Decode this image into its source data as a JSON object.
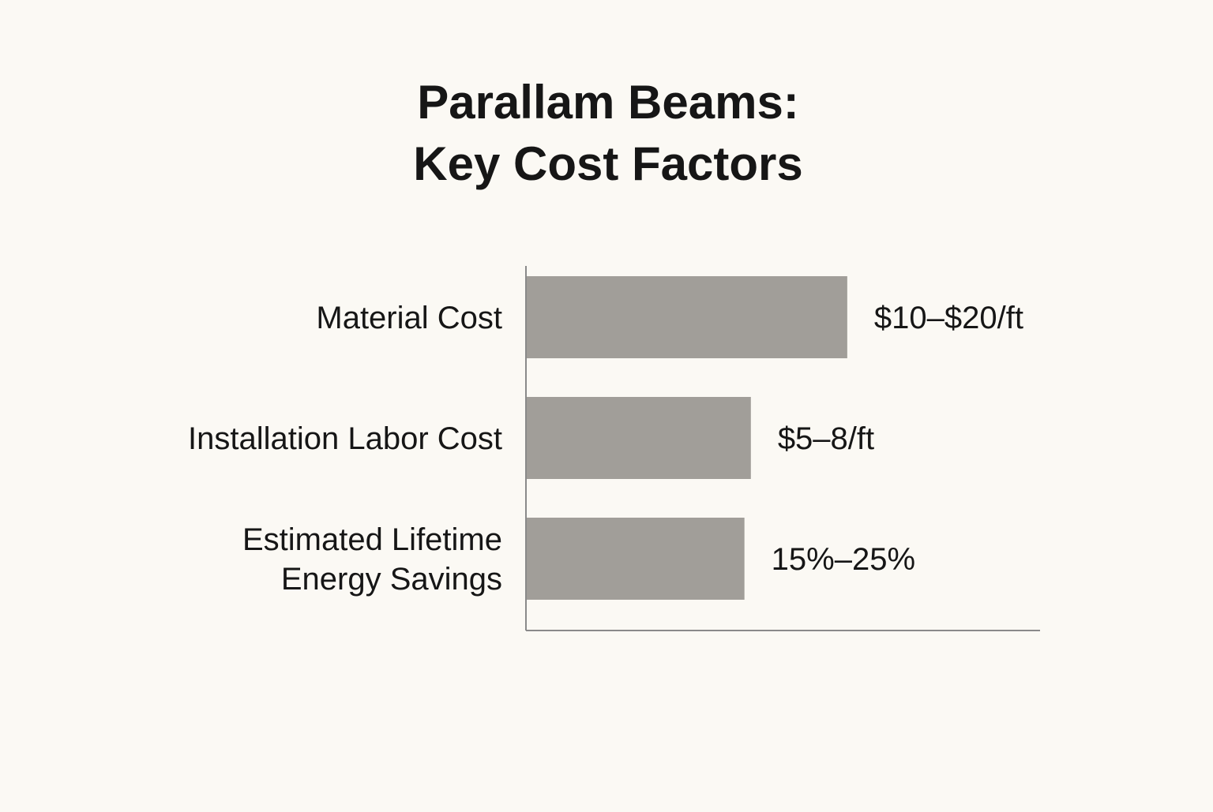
{
  "chart_data": {
    "type": "bar",
    "orientation": "horizontal",
    "title": [
      "Parallam Beams:",
      "Key Cost Factors"
    ],
    "categories": [
      [
        "Material Cost"
      ],
      [
        "Installation Labor Cost"
      ],
      [
        "Estimated Lifetime",
        "Energy Savings"
      ]
    ],
    "values": [
      20,
      14,
      13.6
    ],
    "value_labels": [
      "$10–$20/ft",
      "$5–8/ft",
      "15%–25%"
    ],
    "xlim": [
      0,
      32
    ],
    "xlabel": "",
    "ylabel": "",
    "grid": false,
    "legend": "none",
    "bar_color": "#a19e99",
    "axis_color": "#8a8a8a",
    "text_color": "#161616"
  }
}
